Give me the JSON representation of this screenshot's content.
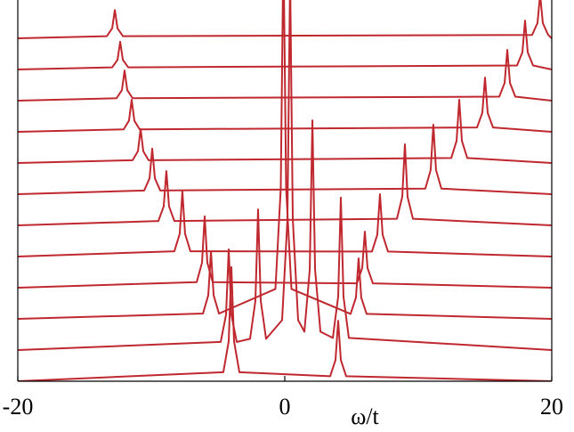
{
  "chart_data": {
    "type": "line",
    "xlabel": "ω/t",
    "color": "#c0282f",
    "xlim": [
      -20,
      20
    ],
    "xticks": [
      -20,
      0,
      20
    ],
    "ylim": [
      0,
      12.23
    ],
    "series": [
      {
        "x": [
          -20,
          -4.6,
          -4.2,
          -4.0,
          -3.8,
          -3.4,
          3.4,
          3.8,
          4.0,
          4.2,
          4.6,
          20
        ],
        "values": [
          0,
          0.29,
          1.28,
          3.66,
          1.28,
          0.29,
          0.16,
          0.68,
          1.94,
          0.68,
          0.16,
          0
        ]
      },
      {
        "x": [
          -20,
          -4.8,
          -4.4,
          -4.2,
          -4.0,
          -3.6,
          -2.6,
          -2.2,
          -2.0,
          -1.8,
          -1.4,
          -0.2,
          0.2,
          0.4,
          0.6,
          1.0,
          1.47,
          1.87,
          2.07,
          2.27,
          2.67,
          3.6,
          4.0,
          4.2,
          4.4,
          4.8,
          20
        ],
        "values": [
          1,
          1.26,
          2.13,
          4.23,
          2.13,
          1.26,
          1.36,
          2.58,
          5.51,
          2.58,
          1.36,
          1.96,
          5.2,
          13,
          5.2,
          1.96,
          1.59,
          3.58,
          8.37,
          3.58,
          1.59,
          1.39,
          2.71,
          5.89,
          2.71,
          1.39,
          1
        ]
      },
      {
        "x": [
          -20,
          -6.13,
          -5.73,
          -5.53,
          -5.33,
          -4.93,
          -0.7,
          -0.3,
          -0.1,
          0.1,
          0.5,
          4.93,
          5.33,
          5.53,
          5.73,
          6.13,
          20
        ],
        "values": [
          2,
          2.17,
          2.76,
          4.17,
          2.76,
          2.17,
          2.96,
          6.2,
          14,
          6.2,
          2.96,
          2.16,
          2.68,
          3.94,
          2.68,
          2.16,
          2
        ]
      },
      {
        "x": [
          -20,
          -6.6,
          -6.2,
          -6.0,
          -5.8,
          -5.4,
          5.4,
          5.8,
          6.0,
          6.2,
          6.6,
          20
        ],
        "values": [
          3,
          3.18,
          3.8,
          5.29,
          3.8,
          3.18,
          3.14,
          3.63,
          4.8,
          3.63,
          3.14,
          3
        ]
      },
      {
        "x": [
          -20,
          -8.27,
          -7.87,
          -7.67,
          -7.47,
          -7.07,
          6.53,
          6.93,
          7.13,
          7.33,
          7.73,
          20
        ],
        "values": [
          4,
          4.17,
          4.73,
          6.09,
          4.73,
          4.17,
          4.16,
          4.7,
          6,
          4.7,
          4.16,
          4
        ]
      },
      {
        "x": [
          -20,
          -9.47,
          -9.07,
          -8.87,
          -8.67,
          -8.27,
          8.4,
          8.8,
          9.0,
          9.2,
          9.6,
          20
        ],
        "values": [
          5,
          5.14,
          5.61,
          6.74,
          5.61,
          5.14,
          5.21,
          5.91,
          7.6,
          5.91,
          5.21,
          5
        ]
      },
      {
        "x": [
          -20,
          -10.53,
          -10.13,
          -9.93,
          -9.73,
          -9.33,
          10.53,
          10.93,
          11.13,
          11.33,
          11.73,
          20
        ],
        "values": [
          6,
          6.12,
          6.51,
          7.46,
          6.51,
          6.12,
          6.18,
          6.78,
          8.23,
          6.78,
          6.18,
          6
        ]
      },
      {
        "x": [
          -20,
          -11.4,
          -11.0,
          -10.8,
          -10.6,
          -10.2,
          12.47,
          12.87,
          13.07,
          13.27,
          13.67,
          20
        ],
        "values": [
          7,
          7.09,
          7.38,
          8.09,
          7.38,
          7.09,
          7.16,
          7.71,
          9.03,
          7.71,
          7.16,
          7
        ]
      },
      {
        "x": [
          -20,
          -12.07,
          -11.67,
          -11.47,
          -11.27,
          -10.87,
          14.4,
          14.8,
          15.0,
          15.2,
          15.6,
          20
        ],
        "values": [
          8,
          8.08,
          8.36,
          9.03,
          8.36,
          8.08,
          8.14,
          8.61,
          9.74,
          8.61,
          8.14,
          8
        ]
      },
      {
        "x": [
          -20,
          -12.6,
          -12.2,
          -12.0,
          -11.8,
          -11.4,
          16.07,
          16.47,
          16.67,
          16.87,
          17.27,
          20
        ],
        "values": [
          9,
          9.08,
          9.34,
          9.97,
          9.34,
          9.08,
          9.13,
          9.57,
          10.63,
          9.57,
          9.13,
          9
        ]
      },
      {
        "x": [
          -20,
          -12.93,
          -12.53,
          -12.33,
          -12.13,
          -11.73,
          17.4,
          17.8,
          18.0,
          18.2,
          18.6,
          20
        ],
        "values": [
          10,
          10.07,
          10.31,
          10.89,
          10.31,
          10.07,
          10.13,
          10.55,
          11.57,
          10.55,
          10.13,
          10
        ]
      },
      {
        "x": [
          -20,
          -13.33,
          -12.93,
          -12.73,
          -12.53,
          -12.13,
          18.53,
          18.93,
          19.13,
          19.33,
          19.73,
          20
        ],
        "values": [
          11,
          11.07,
          11.32,
          11.91,
          11.32,
          11.07,
          11.11,
          11.49,
          12.4,
          11.49,
          11.11,
          11
        ]
      }
    ]
  }
}
